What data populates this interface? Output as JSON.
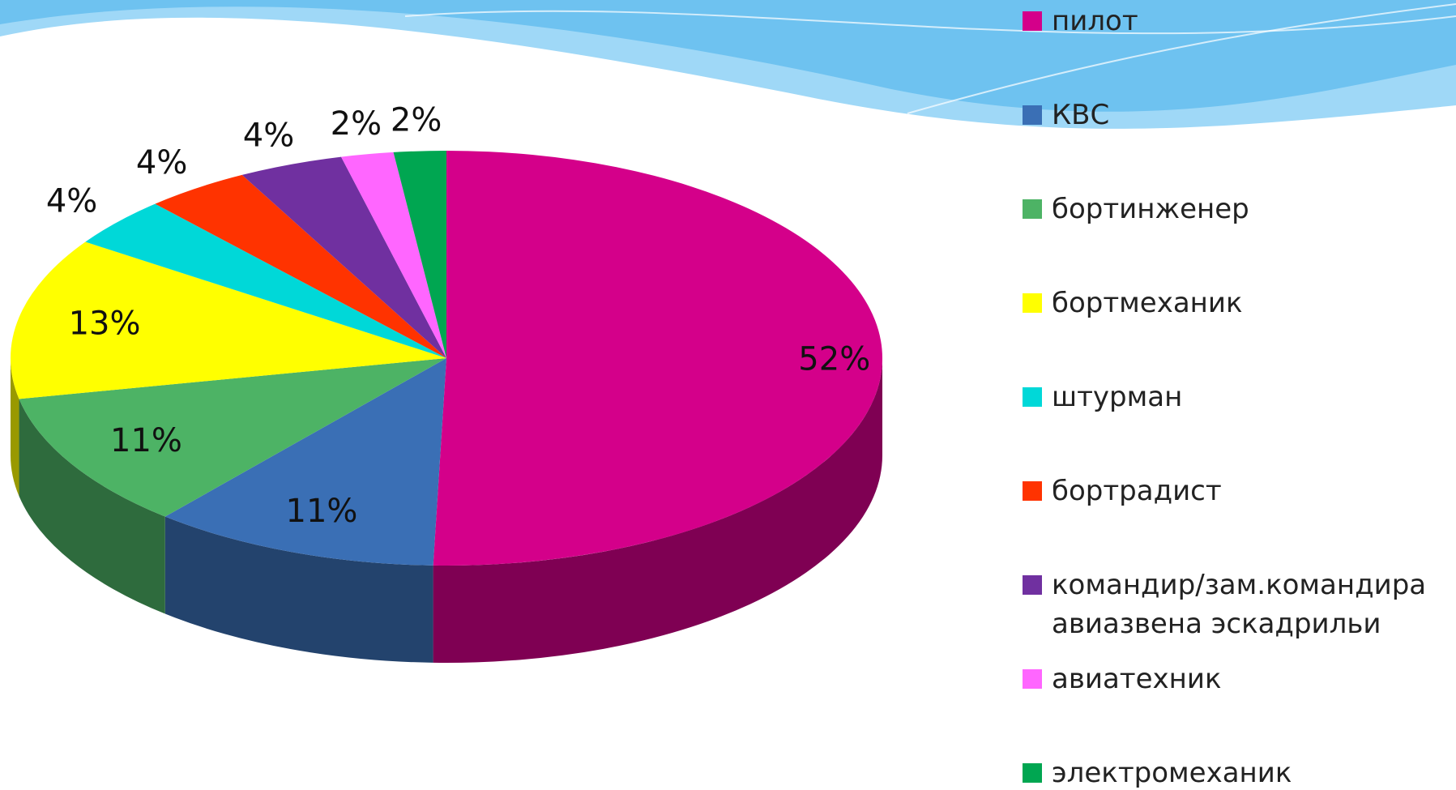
{
  "chart_data": {
    "type": "pie",
    "categories": [
      "пилот",
      "КВС",
      "бортинженер",
      "бортмеханик",
      "штурман",
      "бортрадист",
      "командир/зам.командира авиазвена эскадрильи",
      "авиатехник",
      "электромеханик"
    ],
    "values": [
      52,
      11,
      11,
      13,
      4,
      4,
      4,
      2,
      2
    ],
    "value_labels": [
      "52%",
      "11%",
      "11%",
      "13%",
      "4%",
      "4%",
      "4%",
      "2%",
      "2%"
    ],
    "colors": [
      "#d4008a",
      "#3a6fb5",
      "#4db365",
      "#ffff00",
      "#00d8d8",
      "#ff3300",
      "#7030a0",
      "#ff66ff",
      "#00a651"
    ],
    "legend": "right"
  }
}
